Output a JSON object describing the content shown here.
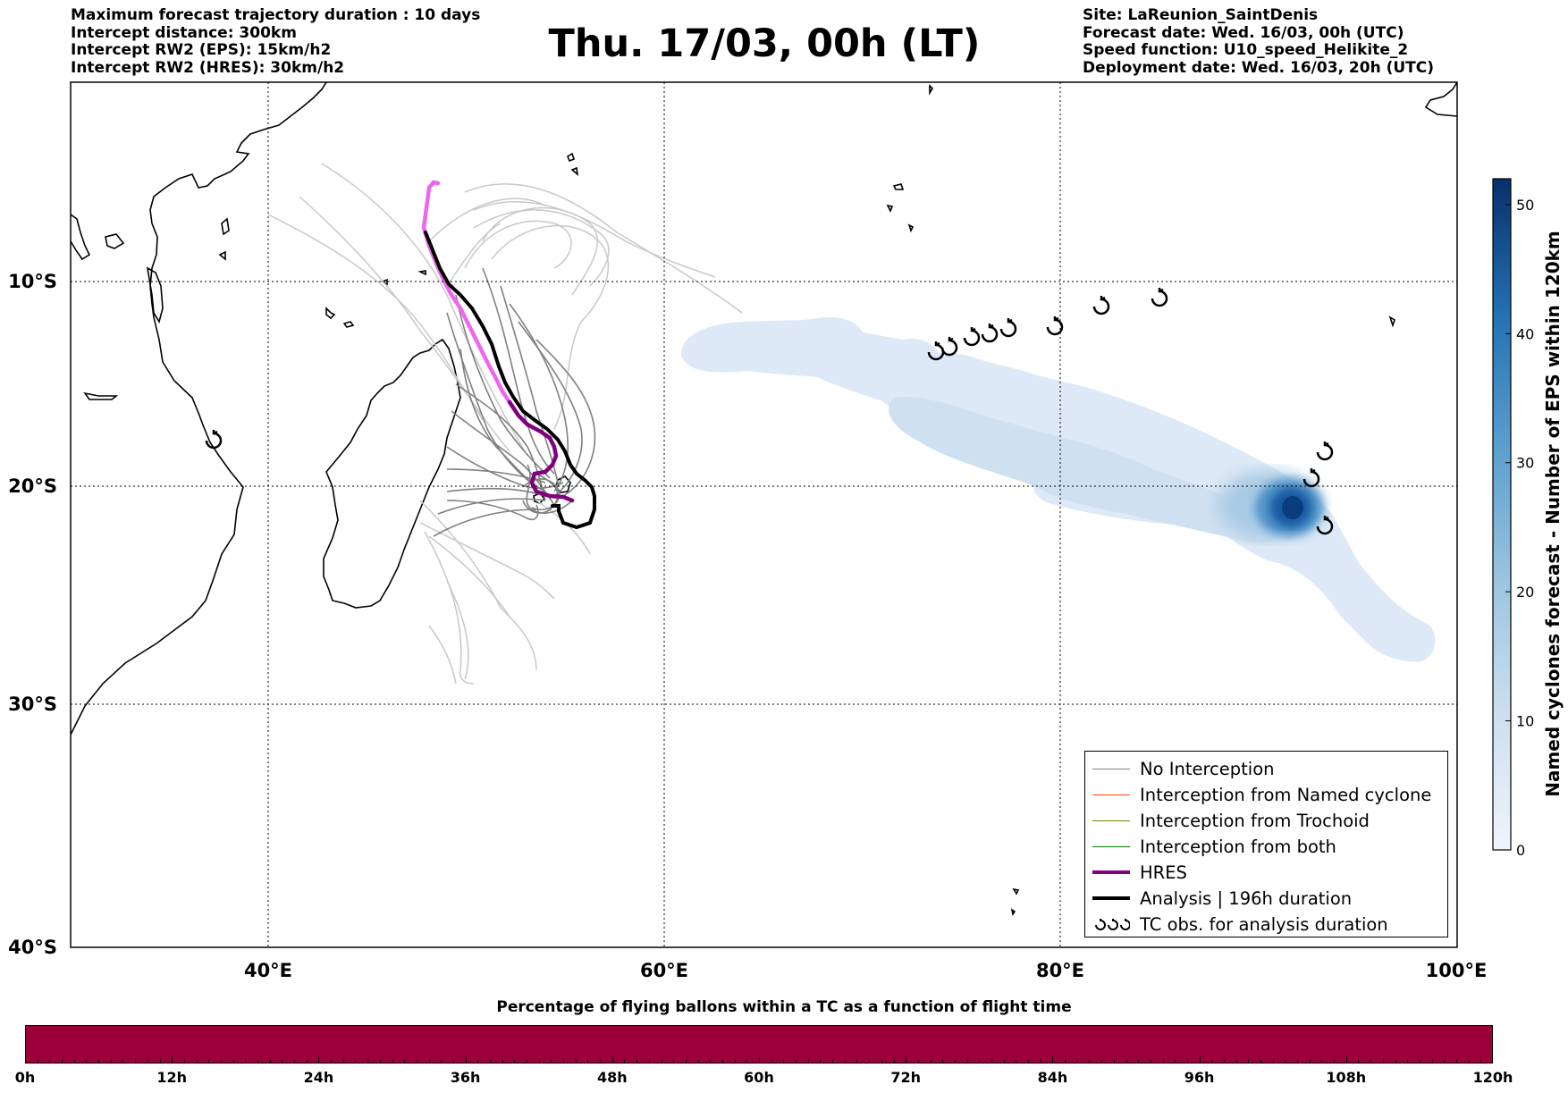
{
  "header_left": [
    "Maximum forecast trajectory duration : 10 days",
    "Intercept distance: 300km",
    "Intercept RW2 (EPS):  15km/h2",
    "Intercept RW2 (HRES): 30km/h2"
  ],
  "title": "Thu. 17/03, 00h (LT)",
  "header_right": [
    "Site: LaReunion_SaintDenis",
    "Forecast date: Wed. 16/03, 00h (UTC)",
    "Speed function: U10_speed_Helikite_2",
    "Deployment date: Wed. 16/03, 20h (UTC)"
  ],
  "map": {
    "lon_labels": [
      "40°E",
      "60°E",
      "80°E",
      "100°E"
    ],
    "lat_labels": [
      "10°S",
      "20°S",
      "30°S",
      "40°S"
    ],
    "colors": {
      "no_interception": "#808080",
      "named_cyclone": "#ff4500",
      "trochoid": "#808000",
      "both": "#008000",
      "hres": "#800080",
      "hres_early": "#ee66ee",
      "analysis": "#000000"
    },
    "tc_obs_icon": "tropical-cyclone-symbol"
  },
  "legend": {
    "items": [
      {
        "label": "No Interception",
        "color": "#808080",
        "style": "thin"
      },
      {
        "label": "Interception from Named cyclone",
        "color": "#ff4500",
        "style": "thin"
      },
      {
        "label": "Interception from Trochoid",
        "color": "#808000",
        "style": "thin"
      },
      {
        "label": "Interception from both",
        "color": "#008000",
        "style": "thin"
      },
      {
        "label": "HRES",
        "color": "#800080",
        "style": "thick"
      },
      {
        "label": "Analysis | 196h duration",
        "color": "#000000",
        "style": "thick"
      },
      {
        "label": "TC obs. for analysis duration",
        "color": "#000000",
        "style": "symbol"
      }
    ]
  },
  "colorbar": {
    "label": "Named cyclones forecast - Number of EPS within 120km",
    "ticks": [
      "0",
      "10",
      "20",
      "30",
      "40",
      "50"
    ],
    "color_low": "#e6eef8",
    "color_high": "#08306b"
  },
  "timebar": {
    "title": "Percentage of flying ballons within a TC as a function of flight time",
    "color": "#9c0039",
    "ticks": [
      "0h",
      "12h",
      "24h",
      "36h",
      "48h",
      "60h",
      "72h",
      "84h",
      "96h",
      "108h",
      "120h"
    ]
  }
}
